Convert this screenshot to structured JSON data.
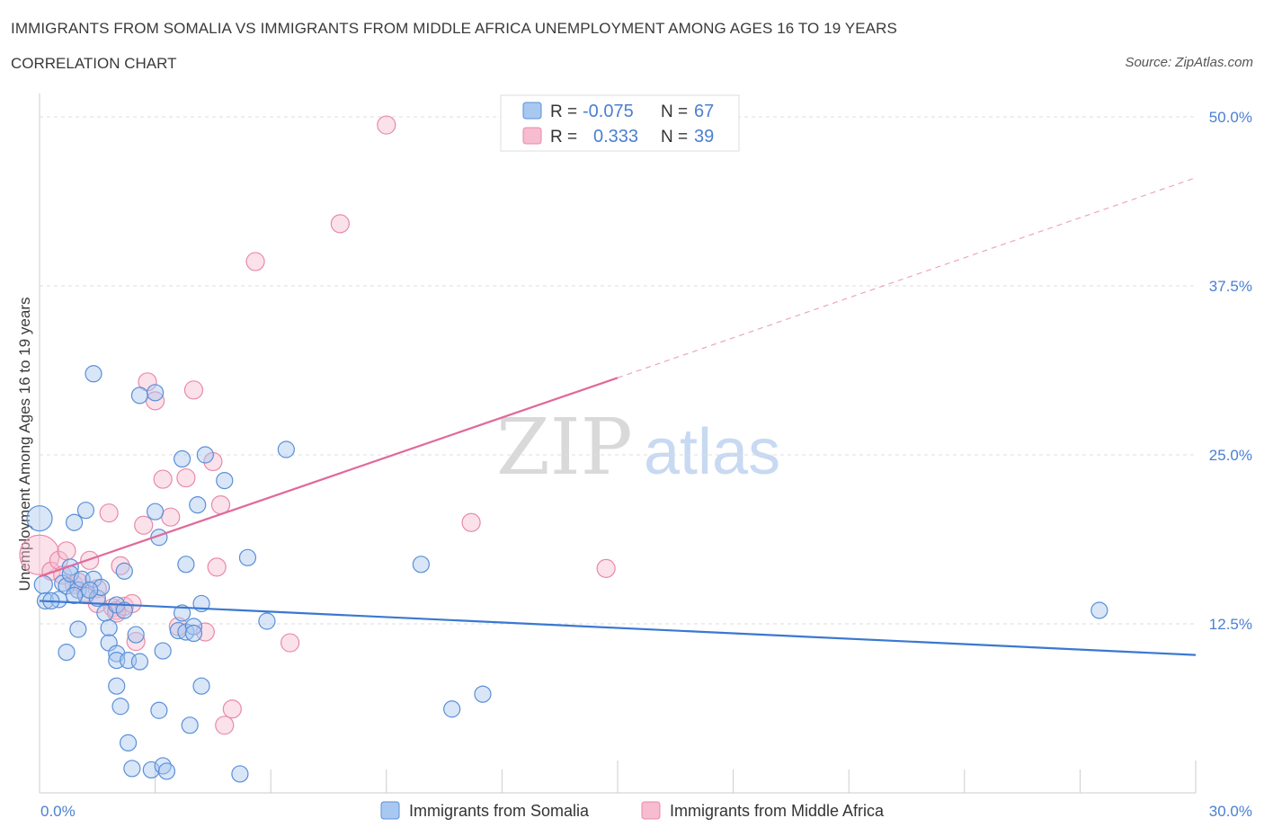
{
  "header": {
    "title": "IMMIGRANTS FROM SOMALIA VS IMMIGRANTS FROM MIDDLE AFRICA UNEMPLOYMENT AMONG AGES 16 TO 19 YEARS",
    "subtitle": "CORRELATION CHART",
    "source": "Source: ZipAtlas.com"
  },
  "watermark": {
    "zip": "ZIP",
    "atlas": "atlas"
  },
  "legend_box": {
    "rows": [
      {
        "r_label": "R =",
        "r_value": "-0.075",
        "n_label": "N =",
        "n_value": "67"
      },
      {
        "r_label": "R =",
        "r_value": "0.333",
        "n_label": "N =",
        "n_value": "39"
      }
    ]
  },
  "colors": {
    "somalia_fill": "#a9c8f0",
    "somalia_stroke": "#5a8fd8",
    "somalia_line": "#3a78d0",
    "africa_fill": "#f6bcd0",
    "africa_stroke": "#e88aa8",
    "africa_line": "#e0699a",
    "axis_text": "#4a7fd1",
    "grid": "#dddddd"
  },
  "chart_data": {
    "type": "scatter",
    "title": "IMMIGRANTS FROM SOMALIA VS IMMIGRANTS FROM MIDDLE AFRICA UNEMPLOYMENT AMONG AGES 16 TO 19 YEARS",
    "xlabel": "",
    "ylabel": "Unemployment Among Ages 16 to 19 years",
    "xlim": [
      0,
      30
    ],
    "ylim": [
      0,
      50
    ],
    "x_tick_labels": [
      "0.0%",
      "30.0%"
    ],
    "y_ticks": [
      12.5,
      25.0,
      37.5,
      50.0
    ],
    "y_tick_labels": [
      "12.5%",
      "25.0%",
      "37.5%",
      "50.0%"
    ],
    "grid": true,
    "legend": [
      "Immigrants from Somalia",
      "Immigrants from Middle Africa"
    ],
    "series": [
      {
        "name": "Immigrants from Somalia",
        "r": -0.075,
        "n": 67,
        "trend": {
          "x0": 0,
          "y0": 14.2,
          "x1": 30,
          "y1": 10.2
        },
        "points": [
          [
            0.0,
            20.3,
            14
          ],
          [
            0.1,
            15.4,
            10
          ],
          [
            0.15,
            14.2,
            9
          ],
          [
            0.5,
            14.3,
            9
          ],
          [
            0.6,
            15.5,
            9
          ],
          [
            0.7,
            15.3,
            9
          ],
          [
            0.8,
            16.7,
            9
          ],
          [
            0.8,
            16.2,
            9
          ],
          [
            0.9,
            20.0,
            9
          ],
          [
            1.0,
            15.0,
            9
          ],
          [
            1.1,
            15.8,
            9
          ],
          [
            1.2,
            14.6,
            9
          ],
          [
            1.2,
            20.9,
            9
          ],
          [
            1.4,
            31.0,
            9
          ],
          [
            1.4,
            15.8,
            9
          ],
          [
            1.5,
            14.4,
            9
          ],
          [
            1.6,
            15.2,
            9
          ],
          [
            1.7,
            13.3,
            9
          ],
          [
            1.8,
            12.2,
            9
          ],
          [
            1.8,
            11.1,
            9
          ],
          [
            0.7,
            10.4,
            9
          ],
          [
            1.0,
            12.1,
            9
          ],
          [
            2.0,
            13.9,
            9
          ],
          [
            2.2,
            16.4,
            9
          ],
          [
            2.5,
            11.7,
            9
          ],
          [
            2.0,
            10.3,
            9
          ],
          [
            2.0,
            9.8,
            9
          ],
          [
            2.3,
            9.8,
            9
          ],
          [
            2.6,
            9.7,
            9
          ],
          [
            2.6,
            29.4,
            9
          ],
          [
            3.0,
            29.6,
            9
          ],
          [
            3.0,
            20.8,
            9
          ],
          [
            3.1,
            18.9,
            9
          ],
          [
            3.2,
            10.5,
            9
          ],
          [
            3.6,
            12.0,
            9
          ],
          [
            3.7,
            13.3,
            9
          ],
          [
            3.7,
            24.7,
            9
          ],
          [
            3.8,
            11.9,
            9
          ],
          [
            3.8,
            16.9,
            9
          ],
          [
            4.0,
            12.3,
            9
          ],
          [
            4.1,
            21.3,
            9
          ],
          [
            4.2,
            14.0,
            9
          ],
          [
            4.2,
            7.9,
            9
          ],
          [
            4.3,
            25.0,
            9
          ],
          [
            4.8,
            23.1,
            9
          ],
          [
            5.4,
            17.4,
            9
          ],
          [
            5.9,
            12.7,
            9
          ],
          [
            6.4,
            25.4,
            9
          ],
          [
            2.0,
            7.9,
            9
          ],
          [
            2.1,
            6.4,
            9
          ],
          [
            2.3,
            3.7,
            9
          ],
          [
            2.4,
            1.8,
            9
          ],
          [
            2.9,
            1.7,
            9
          ],
          [
            3.1,
            6.1,
            9
          ],
          [
            3.2,
            2.0,
            9
          ],
          [
            3.3,
            1.6,
            9
          ],
          [
            3.9,
            5.0,
            9
          ],
          [
            5.2,
            1.4,
            9
          ],
          [
            9.9,
            16.9,
            9
          ],
          [
            10.7,
            6.2,
            9
          ],
          [
            11.5,
            7.3,
            9
          ],
          [
            27.5,
            13.5,
            9
          ],
          [
            0.3,
            14.2,
            9
          ],
          [
            0.9,
            14.6,
            9
          ],
          [
            1.3,
            15.0,
            9
          ],
          [
            2.2,
            13.5,
            9
          ],
          [
            4.0,
            11.8,
            9
          ]
        ]
      },
      {
        "name": "Immigrants from Middle Africa",
        "r": 0.333,
        "n": 39,
        "trend": {
          "x0": 0,
          "y0": 16.0,
          "x1": 15,
          "y1": 30.7,
          "dash_to": {
            "x": 30,
            "y": 45.5
          }
        },
        "points": [
          [
            0.0,
            17.6,
            22
          ],
          [
            0.3,
            16.4,
            10
          ],
          [
            0.5,
            17.2,
            10
          ],
          [
            0.6,
            16.1,
            10
          ],
          [
            0.7,
            17.9,
            10
          ],
          [
            0.9,
            15.4,
            10
          ],
          [
            1.0,
            15.6,
            10
          ],
          [
            1.2,
            14.8,
            10
          ],
          [
            1.3,
            17.2,
            10
          ],
          [
            1.5,
            15.1,
            10
          ],
          [
            1.5,
            14.0,
            10
          ],
          [
            1.8,
            20.7,
            10
          ],
          [
            1.9,
            13.7,
            10
          ],
          [
            2.0,
            13.5,
            10
          ],
          [
            2.0,
            13.3,
            10
          ],
          [
            2.1,
            16.8,
            10
          ],
          [
            2.2,
            13.8,
            10
          ],
          [
            2.4,
            14.0,
            10
          ],
          [
            2.5,
            11.2,
            10
          ],
          [
            2.7,
            19.8,
            10
          ],
          [
            2.8,
            30.4,
            10
          ],
          [
            3.0,
            29.0,
            10
          ],
          [
            3.2,
            23.2,
            10
          ],
          [
            3.4,
            20.4,
            10
          ],
          [
            3.6,
            12.3,
            10
          ],
          [
            3.8,
            23.3,
            10
          ],
          [
            4.0,
            29.8,
            10
          ],
          [
            4.3,
            11.9,
            10
          ],
          [
            4.6,
            16.7,
            10
          ],
          [
            4.7,
            21.3,
            10
          ],
          [
            4.8,
            5.0,
            10
          ],
          [
            5.0,
            6.2,
            10
          ],
          [
            5.6,
            39.3,
            10
          ],
          [
            6.5,
            11.1,
            10
          ],
          [
            7.8,
            42.1,
            10
          ],
          [
            9.0,
            49.4,
            10
          ],
          [
            11.2,
            20.0,
            10
          ],
          [
            14.7,
            16.6,
            10
          ],
          [
            4.5,
            24.5,
            10
          ]
        ]
      }
    ]
  }
}
